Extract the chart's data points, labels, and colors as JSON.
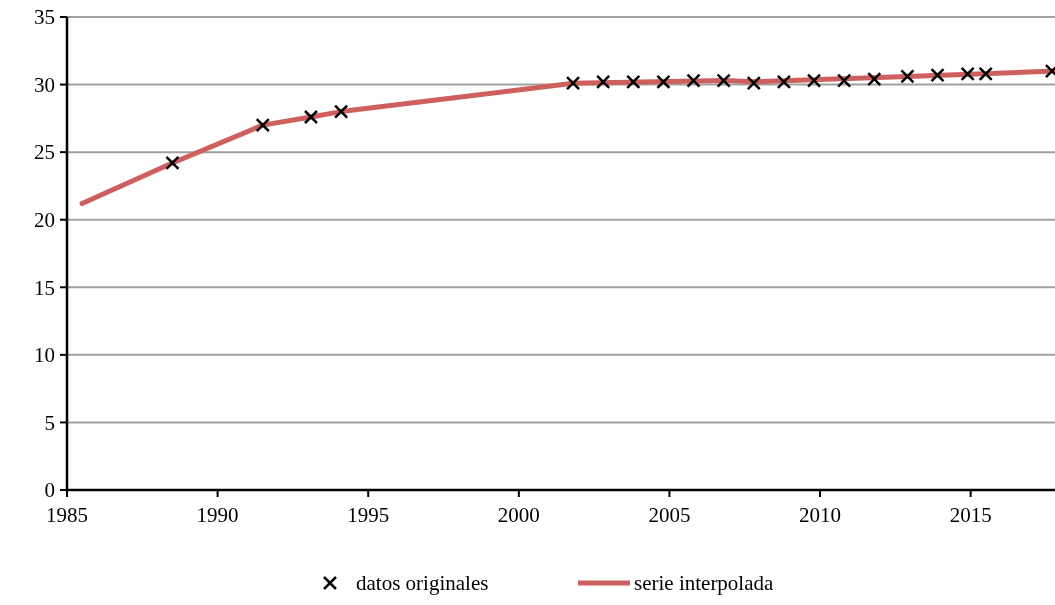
{
  "chart_data": {
    "type": "line",
    "xlim": [
      1985,
      2017.8
    ],
    "xticks": [
      1985,
      1990,
      1995,
      2000,
      2005,
      2010,
      2015
    ],
    "ylim": [
      0,
      35
    ],
    "yticks": [
      0,
      5,
      10,
      15,
      20,
      25,
      30,
      35
    ],
    "grid": "y",
    "legend": "bottom",
    "series": [
      {
        "name": "datos originales",
        "type": "scatter",
        "marker": "cross",
        "color": "#000000",
        "x": [
          1988.5,
          1991.5,
          1993.1,
          1994.1,
          2001.8,
          2002.8,
          2003.8,
          2004.8,
          2005.8,
          2006.8,
          2007.8,
          2008.8,
          2009.8,
          2010.8,
          2011.8,
          2012.9,
          2013.9,
          2014.9,
          2015.5,
          2017.7
        ],
        "values": [
          24.2,
          27.0,
          27.6,
          28.0,
          30.1,
          30.2,
          30.2,
          30.2,
          30.3,
          30.3,
          30.1,
          30.2,
          30.3,
          30.3,
          30.4,
          30.6,
          30.7,
          30.8,
          30.8,
          31.0
        ]
      },
      {
        "name": "serie interpolada",
        "color": "#cd5f5c",
        "x": [
          1985.5,
          1988.5,
          1991.5,
          1993.1,
          1994.1,
          2001.8,
          2006.8,
          2007.8,
          2012.9,
          2017.8
        ],
        "values": [
          21.2,
          24.2,
          27.0,
          27.6,
          28.0,
          30.1,
          30.3,
          30.2,
          30.6,
          31.0
        ]
      }
    ]
  }
}
